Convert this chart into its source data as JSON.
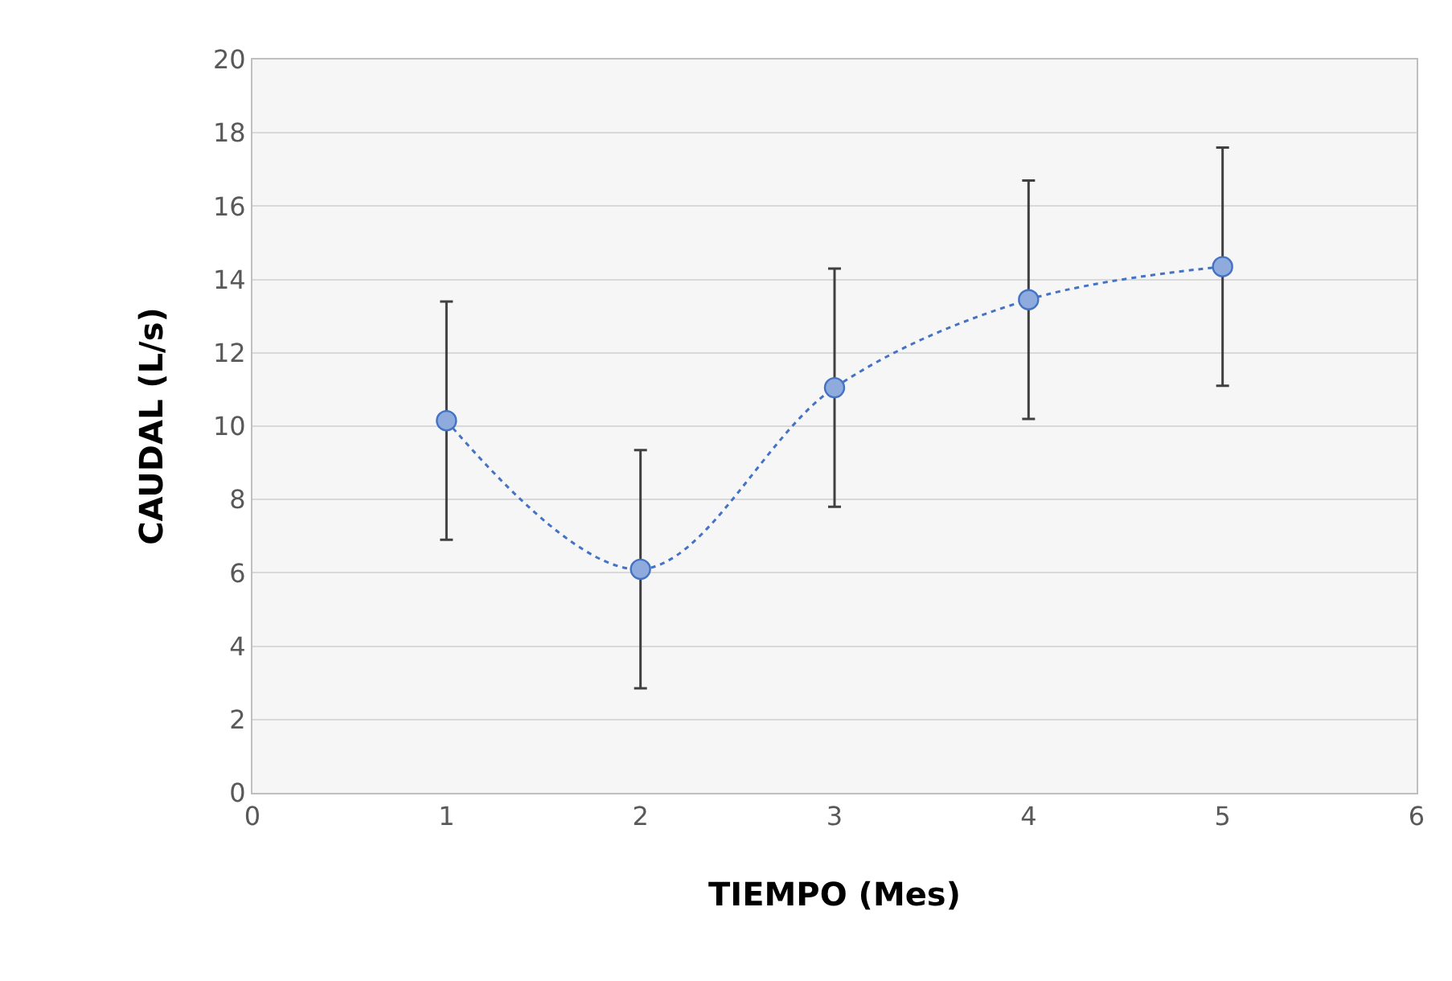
{
  "chart_data": {
    "type": "line",
    "xlabel": "TIEMPO (Mes)",
    "ylabel": "CAUDAL (L/s)",
    "x": [
      1,
      2,
      3,
      4,
      5
    ],
    "series": [
      {
        "color": "#4472c4",
        "values": [
          10.15,
          6.1,
          11.05,
          13.45,
          14.35
        ],
        "errors": [
          3.25,
          3.25,
          3.25,
          3.25,
          3.25
        ]
      }
    ],
    "xlim": [
      0,
      6
    ],
    "xticks": [
      0,
      1,
      2,
      3,
      4,
      5,
      6
    ],
    "ylim": [
      0,
      20
    ],
    "yticks": [
      0,
      2,
      4,
      6,
      8,
      10,
      12,
      14,
      16,
      18,
      20
    ],
    "grid": "y",
    "marker": "circle",
    "line_style": "dotted"
  }
}
